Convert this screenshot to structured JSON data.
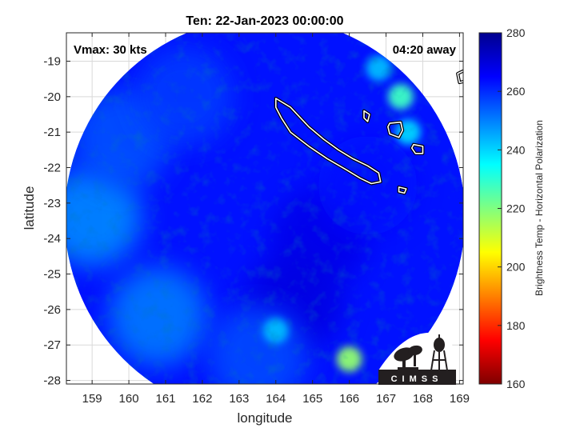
{
  "chart_data": {
    "type": "heatmap",
    "title": "Ten: 22-Jan-2023 00:00:00",
    "xlabel": "longitude",
    "ylabel": "latitude",
    "xlim": [
      158.3,
      169.1
    ],
    "ylim": [
      -28.1,
      -18.2
    ],
    "xticks": [
      159,
      160,
      161,
      162,
      163,
      164,
      165,
      166,
      167,
      168,
      169
    ],
    "yticks": [
      -19,
      -20,
      -21,
      -22,
      -23,
      -24,
      -25,
      -26,
      -27,
      -28
    ],
    "grid": true,
    "annotations": {
      "top_left": "Vmax: 30 kts",
      "top_right": "04:20 away"
    },
    "swath": {
      "center": [
        163.7,
        -23.4
      ],
      "radius_deg": 5.45,
      "background_value": 263
    },
    "field_features": [
      {
        "lon": 165.2,
        "lat": -24.0,
        "value": 268
      },
      {
        "lon": 164.5,
        "lat": -25.8,
        "value": 269
      },
      {
        "lon": 166.5,
        "lat": -22.5,
        "value": 264
      },
      {
        "lon": 159.0,
        "lat": -23.4,
        "value": 248
      },
      {
        "lon": 160.8,
        "lat": -26.2,
        "value": 250
      },
      {
        "lon": 159.8,
        "lat": -21.2,
        "value": 255
      },
      {
        "lon": 161.5,
        "lat": -20.0,
        "value": 258
      },
      {
        "lon": 163.5,
        "lat": -27.3,
        "value": 256
      },
      {
        "lon": 167.4,
        "lat": -20.0,
        "value": 228
      },
      {
        "lon": 166.8,
        "lat": -19.2,
        "value": 243
      },
      {
        "lon": 166.0,
        "lat": -27.4,
        "value": 218
      },
      {
        "lon": 167.6,
        "lat": -21.0,
        "value": 240
      },
      {
        "lon": 164.0,
        "lat": -26.6,
        "value": 243
      }
    ],
    "coastlines": [
      {
        "name": "New Caledonia",
        "points": [
          [
            164.0,
            -20.05
          ],
          [
            164.4,
            -20.3
          ],
          [
            164.9,
            -20.85
          ],
          [
            165.3,
            -21.2
          ],
          [
            165.7,
            -21.5
          ],
          [
            166.1,
            -21.75
          ],
          [
            166.5,
            -21.95
          ],
          [
            166.8,
            -22.15
          ],
          [
            166.85,
            -22.4
          ],
          [
            166.6,
            -22.45
          ],
          [
            166.3,
            -22.3
          ],
          [
            165.9,
            -22.05
          ],
          [
            165.4,
            -21.75
          ],
          [
            164.9,
            -21.4
          ],
          [
            164.4,
            -21.0
          ],
          [
            164.15,
            -20.6
          ],
          [
            164.0,
            -20.3
          ]
        ]
      },
      {
        "name": "Lifou",
        "points": [
          [
            167.1,
            -20.75
          ],
          [
            167.4,
            -20.72
          ],
          [
            167.45,
            -20.95
          ],
          [
            167.35,
            -21.15
          ],
          [
            167.1,
            -21.05
          ],
          [
            167.05,
            -20.85
          ]
        ]
      },
      {
        "name": "Mare",
        "points": [
          [
            167.75,
            -21.35
          ],
          [
            168.0,
            -21.4
          ],
          [
            168.0,
            -21.6
          ],
          [
            167.8,
            -21.6
          ],
          [
            167.7,
            -21.45
          ]
        ]
      },
      {
        "name": "Ouvea",
        "points": [
          [
            166.4,
            -20.4
          ],
          [
            166.55,
            -20.5
          ],
          [
            166.5,
            -20.7
          ],
          [
            166.4,
            -20.6
          ]
        ]
      },
      {
        "name": "Isle of Pines",
        "points": [
          [
            167.35,
            -22.55
          ],
          [
            167.55,
            -22.6
          ],
          [
            167.5,
            -22.72
          ],
          [
            167.35,
            -22.68
          ]
        ]
      },
      {
        "name": "Vanuatu edge",
        "points": [
          [
            168.95,
            -19.35
          ],
          [
            169.15,
            -19.25
          ],
          [
            169.2,
            -19.55
          ],
          [
            169.0,
            -19.6
          ]
        ]
      }
    ]
  },
  "colorbar": {
    "label": "Brightness Temp - Horizontal Polarization",
    "min": 160,
    "max": 280,
    "ticks": [
      160,
      180,
      200,
      220,
      240,
      260,
      280
    ],
    "colormap": [
      "#7f0000",
      "#ff0000",
      "#ff8000",
      "#ffff00",
      "#80ff80",
      "#00ffff",
      "#0080ff",
      "#0000ff",
      "#00008f"
    ]
  },
  "logo": {
    "text": "CIMSS"
  },
  "colors": {
    "frame": "#262626",
    "grid": "#d9d9d9",
    "background": "#ffffff"
  }
}
